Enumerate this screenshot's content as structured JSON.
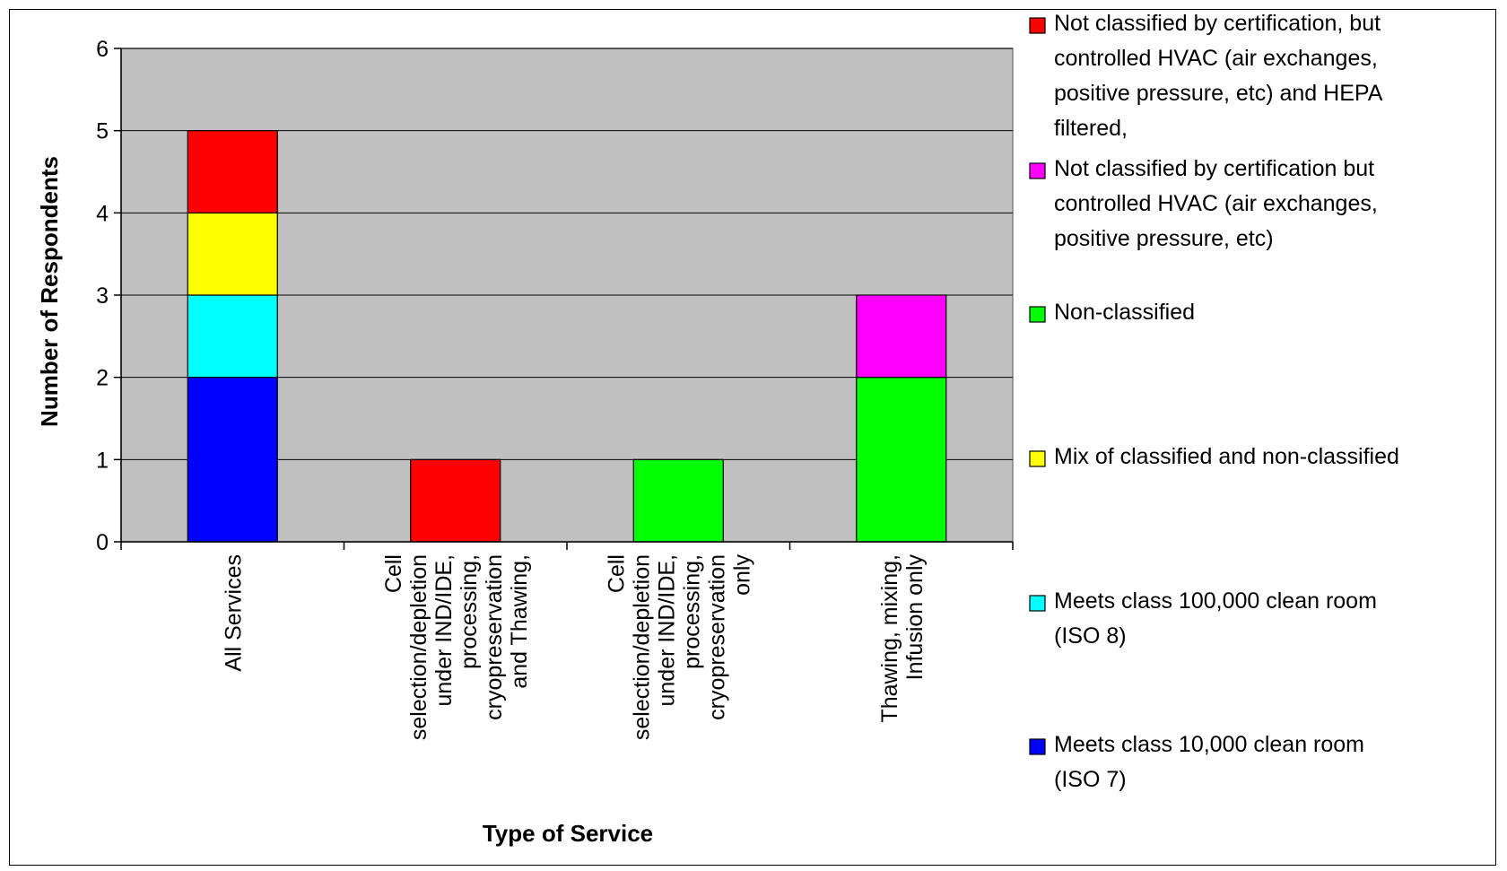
{
  "chart_data": {
    "type": "bar",
    "stacked": true,
    "title": "",
    "xlabel": "Type of Service",
    "ylabel": "Number of Respondents",
    "ylim": [
      0,
      6
    ],
    "yticks": [
      0,
      1,
      2,
      3,
      4,
      5,
      6
    ],
    "grid": true,
    "legend_position": "right",
    "plot_background": "#c0c0c0",
    "categories": [
      [
        "All Services"
      ],
      [
        "Cell",
        "selection/depletion",
        "under IND/IDE,",
        "processing,",
        "cryopreservation",
        "and Thawing,"
      ],
      [
        "Cell",
        "selection/depletion",
        "under IND/IDE,",
        "processing,",
        "cryopreservation",
        "only"
      ],
      [
        "Thawing, mixing,",
        "Infusion only"
      ]
    ],
    "series": [
      {
        "name": "Meets class 10,000 clean room (ISO 7)",
        "legend_lines": [
          "Meets class 10,000 clean room",
          "(ISO 7)"
        ],
        "color": "#0000ff",
        "values": [
          2,
          0,
          0,
          0
        ]
      },
      {
        "name": "Meets class 100,000 clean room (ISO 8)",
        "legend_lines": [
          "Meets class 100,000 clean room",
          "(ISO 8)"
        ],
        "color": "#00ffff",
        "values": [
          1,
          0,
          0,
          0
        ]
      },
      {
        "name": "Mix of classified and non-classified",
        "legend_lines": [
          "Mix of classified and non-classified"
        ],
        "color": "#ffff00",
        "values": [
          1,
          0,
          0,
          0
        ]
      },
      {
        "name": "Non-classified",
        "legend_lines": [
          "Non-classified"
        ],
        "color": "#00ff00",
        "values": [
          0,
          0,
          1,
          2
        ]
      },
      {
        "name": "Not classified by certification but controlled HVAC (air exchanges, positive pressure, etc)",
        "legend_lines": [
          "Not classified by certification but",
          "controlled HVAC (air exchanges,",
          "positive pressure, etc)"
        ],
        "color": "#ff00ff",
        "values": [
          0,
          0,
          0,
          1
        ]
      },
      {
        "name": "Not classified by certification, but controlled HVAC (air exchanges, positive pressure, etc) and HEPA filtered,",
        "legend_lines": [
          "Not classified by certification, but",
          "controlled HVAC (air exchanges,",
          "positive pressure, etc) and HEPA",
          "filtered,"
        ],
        "color": "#ff0000",
        "values": [
          1,
          1,
          0,
          0
        ]
      }
    ],
    "legend_order": [
      5,
      4,
      3,
      2,
      1,
      0
    ]
  }
}
